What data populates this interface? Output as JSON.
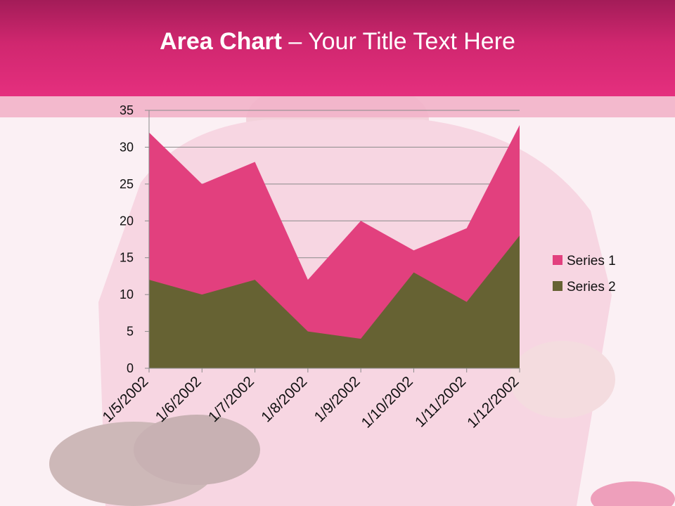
{
  "slide": {
    "title_bold": "Area Chart",
    "title_rest": " – Your Title Text Here"
  },
  "colors": {
    "series1": "#e2407e",
    "series2": "#666233",
    "header": "#e52f7e"
  },
  "chart_data": {
    "type": "area",
    "categories": [
      "1/5/2002",
      "1/6/2002",
      "1/7/2002",
      "1/8/2002",
      "1/9/2002",
      "1/10/2002",
      "1/11/2002",
      "1/12/2002"
    ],
    "series": [
      {
        "name": "Series 1",
        "values": [
          32,
          25,
          28,
          12,
          20,
          16,
          19,
          33
        ]
      },
      {
        "name": "Series 2",
        "values": [
          12,
          10,
          12,
          5,
          4,
          13,
          9,
          18
        ]
      }
    ],
    "ylim": [
      0,
      35
    ],
    "yticks": [
      0,
      5,
      10,
      15,
      20,
      25,
      30,
      35
    ],
    "grid": true,
    "legend": "right"
  }
}
